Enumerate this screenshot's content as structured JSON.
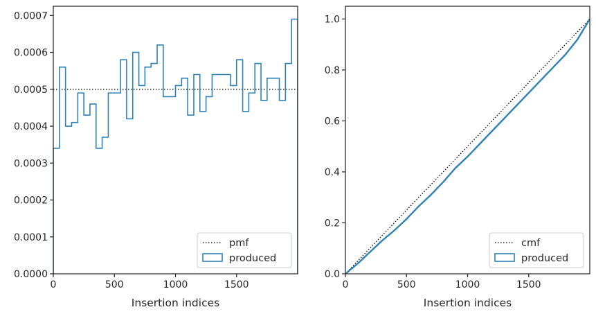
{
  "chart_data": [
    {
      "type": "line",
      "xlabel": "Insertion indices",
      "ylabel": "",
      "xlim": [
        0,
        2000
      ],
      "ylim": [
        0,
        0.000725
      ],
      "xticks": [
        0,
        500,
        1000,
        1500
      ],
      "xtick_labels": [
        "0",
        "500",
        "1000",
        "1500"
      ],
      "yticks": [
        0,
        0.0001,
        0.0002,
        0.0003,
        0.0004,
        0.0005,
        0.0006,
        0.0007
      ],
      "ytick_labels": [
        "0.0000",
        "0.0001",
        "0.0002",
        "0.0003",
        "0.0004",
        "0.0005",
        "0.0006",
        "0.0007"
      ],
      "grid": false,
      "legend_position": "bottom-right",
      "series": [
        {
          "name": "pmf",
          "style": "dotted",
          "color": "#000000",
          "x": [
            0,
            2000
          ],
          "y": [
            0.0005,
            0.0005
          ]
        },
        {
          "name": "produced",
          "style": "step",
          "color": "#2f82b6",
          "bin_width": 50,
          "values": [
            0.00034,
            0.00056,
            0.0004,
            0.00041,
            0.00049,
            0.00043,
            0.00046,
            0.00034,
            0.00037,
            0.00049,
            0.00049,
            0.00058,
            0.00042,
            0.0006,
            0.00051,
            0.00056,
            0.00057,
            0.00062,
            0.00048,
            0.00048,
            0.00051,
            0.00053,
            0.00043,
            0.00054,
            0.00044,
            0.00048,
            0.00054,
            0.00054,
            0.00054,
            0.00051,
            0.00058,
            0.00044,
            0.00049,
            0.00057,
            0.00047,
            0.00053,
            0.00053,
            0.00047,
            0.00057,
            0.00069
          ]
        }
      ]
    },
    {
      "type": "line",
      "xlabel": "Insertion indices",
      "ylabel": "",
      "xlim": [
        0,
        2000
      ],
      "ylim": [
        0,
        1.05
      ],
      "xticks": [
        0,
        500,
        1000,
        1500
      ],
      "xtick_labels": [
        "0",
        "500",
        "1000",
        "1500"
      ],
      "yticks": [
        0,
        0.2,
        0.4,
        0.6,
        0.8,
        1.0
      ],
      "ytick_labels": [
        "0.0",
        "0.2",
        "0.4",
        "0.6",
        "0.8",
        "1.0"
      ],
      "grid": false,
      "legend_position": "bottom-right",
      "series": [
        {
          "name": "cmf",
          "style": "dotted",
          "color": "#000000",
          "x": [
            0,
            2000
          ],
          "y": [
            0,
            1.0
          ]
        },
        {
          "name": "produced",
          "style": "line",
          "color": "#2f82b6",
          "x": [
            0,
            100,
            200,
            300,
            400,
            500,
            600,
            700,
            800,
            900,
            1000,
            1100,
            1200,
            1300,
            1400,
            1500,
            1600,
            1700,
            1800,
            1900,
            2000
          ],
          "y": [
            0,
            0.04,
            0.085,
            0.13,
            0.17,
            0.215,
            0.265,
            0.31,
            0.36,
            0.415,
            0.46,
            0.51,
            0.56,
            0.61,
            0.66,
            0.71,
            0.76,
            0.81,
            0.86,
            0.92,
            1.0
          ]
        }
      ]
    }
  ]
}
